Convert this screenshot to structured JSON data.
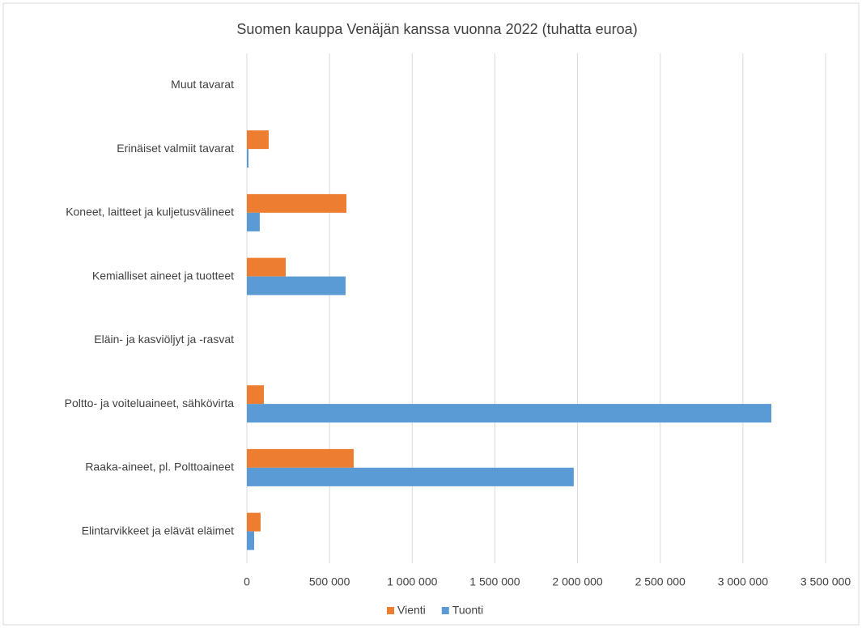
{
  "chart_data": {
    "type": "barh",
    "title": "Suomen kauppa Venäjän kanssa vuonna 2022 (tuhatta euroa)",
    "categories": [
      "Elintarvikkeet ja elävät eläimet",
      "Raaka-aineet, pl. Polttoaineet",
      "Poltto- ja voiteluaineet, sähkövirta",
      "Eläin- ja kasviöljyt ja -rasvat",
      "Kemialliset aineet ja tuotteet",
      "Koneet, laitteet ja kuljetusvälineet",
      "Erinäiset valmiit tavarat",
      "Muut tavarat"
    ],
    "series": [
      {
        "name": "Vienti",
        "color": "#ed7d31",
        "values": [
          83000,
          646000,
          103000,
          0,
          235000,
          602000,
          132000,
          0
        ]
      },
      {
        "name": "Tuonti",
        "color": "#5b9bd5",
        "values": [
          44000,
          1977000,
          3172000,
          0,
          597000,
          78000,
          10000,
          0
        ]
      }
    ],
    "xlim": [
      0,
      3500000
    ],
    "xticks": [
      0,
      {
        "value": 500000,
        "label": "500 000"
      },
      {
        "value": 1000000,
        "label": "1 000 000"
      },
      {
        "value": 1500000,
        "label": "1 500 000"
      },
      {
        "value": 2000000,
        "label": "2 000 000"
      },
      {
        "value": 2500000,
        "label": "2 500 000"
      },
      {
        "value": 3000000,
        "label": "3 000 000"
      },
      {
        "value": 3500000,
        "label": "3 500 000"
      }
    ],
    "grid": true,
    "legend": "bottom"
  }
}
